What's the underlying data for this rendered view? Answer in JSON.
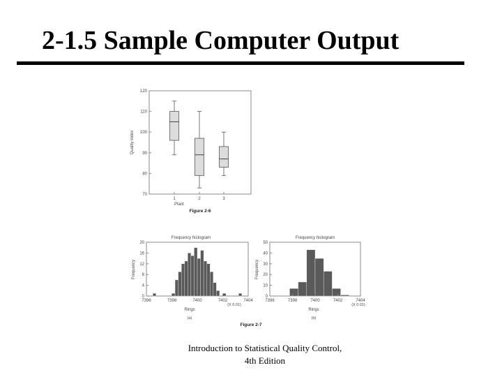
{
  "slide": {
    "title": "2-1.5  Sample Computer Output",
    "caption_line1": "Introduction to Statistical Quality Control,",
    "caption_line2": "4th Edition"
  },
  "chart_data": [
    {
      "type": "boxplot",
      "caption": "Figure 2-6",
      "xlabel": "Plant",
      "ylabel": "Quality index",
      "categories": [
        "1",
        "2",
        "3"
      ],
      "ylim": [
        70,
        120
      ],
      "yticks": [
        70,
        80,
        90,
        100,
        110,
        120
      ],
      "boxes": [
        {
          "category": "1",
          "min": 89,
          "q1": 96,
          "median": 105,
          "q3": 110,
          "max": 115
        },
        {
          "category": "2",
          "min": 73,
          "q1": 79,
          "median": 89,
          "q3": 97,
          "max": 110
        },
        {
          "category": "3",
          "min": 79,
          "q1": 83,
          "median": 87,
          "q3": 93,
          "max": 100
        }
      ],
      "grid": false
    },
    {
      "type": "bar",
      "title": "Frequency histogram",
      "sublabel": "(a)",
      "xlabel": "Rings",
      "ylabel": "Frequency",
      "x_unit": "(X 0.01)",
      "xlim": [
        7396,
        7404
      ],
      "xticks": [
        "7396",
        "7398",
        "7400",
        "7402",
        "7404"
      ],
      "ylim": [
        0,
        20
      ],
      "yticks": [
        0,
        4,
        8,
        12,
        16,
        20
      ],
      "bin_width": 0.25,
      "bins": [
        {
          "x": 7396.5,
          "count": 1
        },
        {
          "x": 7398.0,
          "count": 1
        },
        {
          "x": 7398.25,
          "count": 6
        },
        {
          "x": 7398.5,
          "count": 9
        },
        {
          "x": 7398.75,
          "count": 12
        },
        {
          "x": 7399.0,
          "count": 13
        },
        {
          "x": 7399.25,
          "count": 16
        },
        {
          "x": 7399.5,
          "count": 15
        },
        {
          "x": 7399.75,
          "count": 18
        },
        {
          "x": 7400.0,
          "count": 14
        },
        {
          "x": 7400.25,
          "count": 17
        },
        {
          "x": 7400.5,
          "count": 13
        },
        {
          "x": 7400.75,
          "count": 12
        },
        {
          "x": 7401.0,
          "count": 9
        },
        {
          "x": 7401.25,
          "count": 5
        },
        {
          "x": 7401.5,
          "count": 2
        },
        {
          "x": 7402.0,
          "count": 1
        },
        {
          "x": 7403.25,
          "count": 1
        }
      ],
      "grid": false
    },
    {
      "type": "bar",
      "title": "Frequency histogram",
      "sublabel": "(b)",
      "xlabel": "Rings",
      "ylabel": "Frequency",
      "x_unit": "(X 0.01)",
      "xlim": [
        7396,
        7404
      ],
      "xticks": [
        "7396",
        "7398",
        "7400",
        "7402",
        "7404"
      ],
      "ylim": [
        0,
        50
      ],
      "yticks": [
        0,
        10,
        20,
        30,
        40,
        50
      ],
      "bin_width": 0.75,
      "bins": [
        {
          "x": 7397.75,
          "count": 7
        },
        {
          "x": 7398.5,
          "count": 13
        },
        {
          "x": 7399.25,
          "count": 43
        },
        {
          "x": 7400.0,
          "count": 35
        },
        {
          "x": 7400.75,
          "count": 23
        },
        {
          "x": 7401.5,
          "count": 7
        },
        {
          "x": 7402.25,
          "count": 1
        }
      ],
      "grid": false
    }
  ],
  "figure_labels": {
    "fig7": "Figure 2-7"
  },
  "colors": {
    "box_fill": "#dcdcdc",
    "bar_fill": "#5a5a5a",
    "frame": "#888888"
  }
}
